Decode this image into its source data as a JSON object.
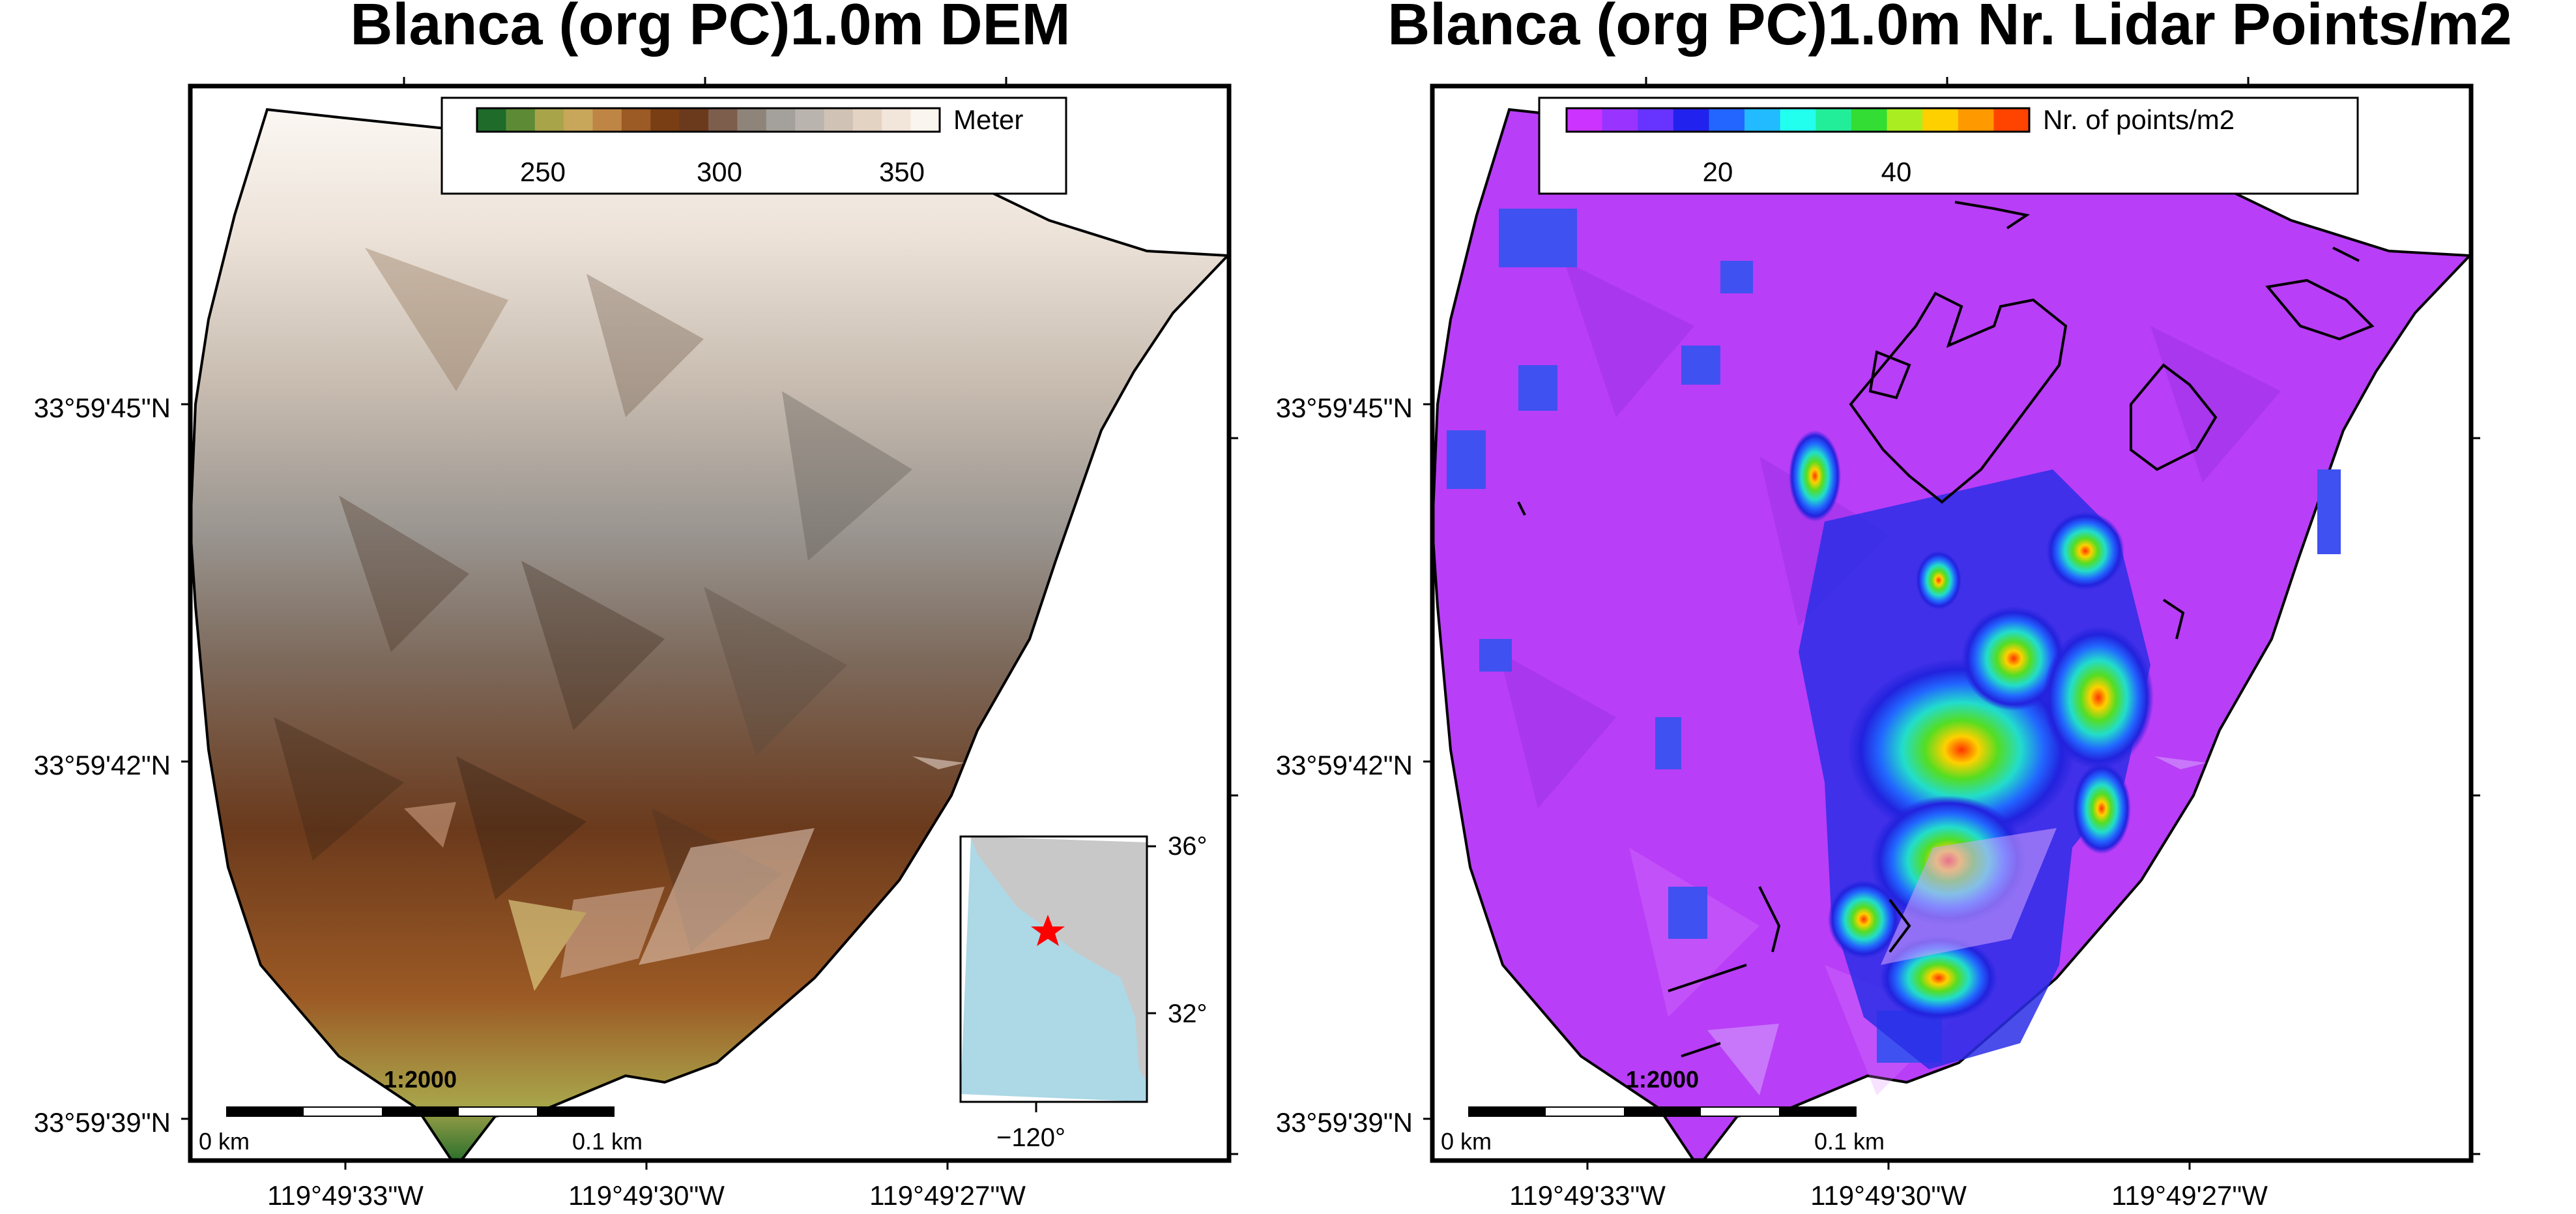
{
  "left_panel": {
    "title": "Blanca (org PC)1.0m DEM",
    "colorbar": {
      "label": "Meter",
      "ticks": [
        "250",
        "300",
        "350"
      ],
      "palette": [
        "#1e6b2a",
        "#5d8a35",
        "#a8a44a",
        "#c8a65a",
        "#bf8545",
        "#9c5a25",
        "#7a3e14",
        "#6b3a1c",
        "#7d5d4c",
        "#8f8479",
        "#a4a09b",
        "#bab4ae",
        "#d0c2b4",
        "#e3d3c3",
        "#f2e6db",
        "#fbf5ef"
      ]
    },
    "scale_bar": {
      "ratio": "1:2000",
      "start": "0 km",
      "end": "0.1 km"
    },
    "lat_labels": [
      "33°59'45\"N",
      "33°59'42\"N",
      "33°59'39\"N"
    ],
    "lon_labels": [
      "119°49'33\"W",
      "119°49'30\"W",
      "119°49'27\"W"
    ],
    "inset": {
      "lat_labels": [
        "36°",
        "32°"
      ],
      "lon_label": "−120°",
      "marker": "star",
      "land_color": "#c8c8c8",
      "sea_color": "#add8e6",
      "marker_color": "#ff0000"
    }
  },
  "right_panel": {
    "title": "Blanca (org PC)1.0m Nr. Lidar Points/m2",
    "colorbar": {
      "label": "Nr. of points/m2",
      "ticks": [
        "20",
        "40"
      ],
      "palette": [
        "#cc33ff",
        "#9933ff",
        "#6633ff",
        "#2222ee",
        "#2266ff",
        "#22bbff",
        "#22ffee",
        "#22ee99",
        "#33dd33",
        "#aaee22",
        "#ffd000",
        "#ff9900",
        "#ff4400"
      ]
    },
    "scale_bar": {
      "ratio": "1:2000",
      "start": "0 km",
      "end": "0.1 km"
    },
    "lat_labels": [
      "33°59'45\"N",
      "33°59'42\"N",
      "33°59'39\"N"
    ],
    "lon_labels": [
      "119°49'33\"W",
      "119°49'30\"W",
      "119°49'27\"W"
    ]
  }
}
